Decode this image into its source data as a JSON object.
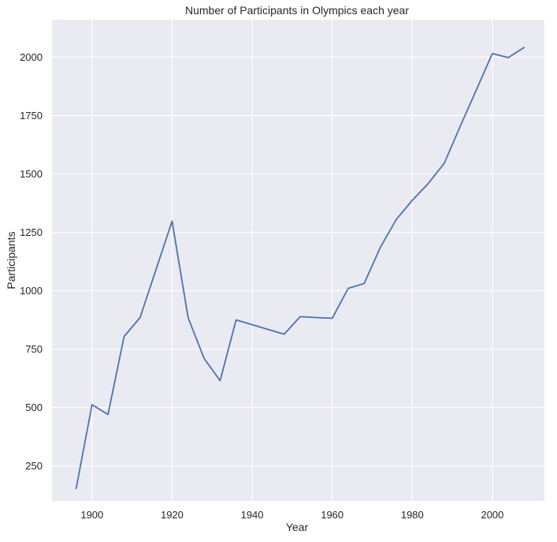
{
  "chart_data": {
    "type": "line",
    "title": "Number of Participants in Olympics each year",
    "xlabel": "Year",
    "ylabel": "Participants",
    "xlim": [
      1890,
      2013
    ],
    "ylim": [
      100,
      2160
    ],
    "xticks": [
      1900,
      1920,
      1940,
      1960,
      1980,
      2000
    ],
    "yticks": [
      250,
      500,
      750,
      1000,
      1250,
      1500,
      1750,
      2000
    ],
    "grid": true,
    "series": [
      {
        "color": "#4c72b0",
        "x": [
          1896,
          1900,
          1904,
          1908,
          1912,
          1920,
          1924,
          1928,
          1932,
          1936,
          1948,
          1952,
          1956,
          1960,
          1964,
          1968,
          1972,
          1976,
          1980,
          1984,
          1988,
          1992,
          1996,
          2000,
          2004,
          2008
        ],
        "y": [
          151,
          512,
          470,
          804,
          885,
          1298,
          884,
          710,
          615,
          875,
          814,
          889,
          885,
          882,
          1010,
          1031,
          1185,
          1305,
          1387,
          1459,
          1546,
          1705,
          1859,
          2015,
          1998,
          2042
        ]
      }
    ]
  },
  "colors": {
    "plot_background": "#eaeaf2",
    "grid": "#ffffff",
    "line": "#4c72b0"
  }
}
